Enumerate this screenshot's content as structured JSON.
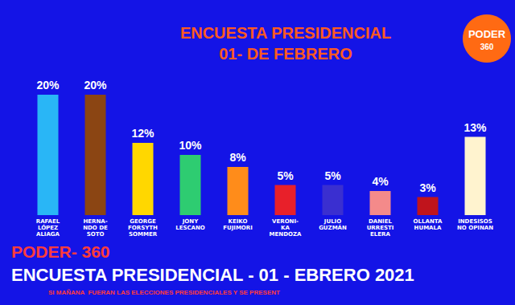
{
  "chart_data": {
    "type": "bar",
    "title": "ENCUESTA PRESIDENCIAL",
    "subtitle": "01- DE FEBRERO",
    "categories": [
      "RAFAEL\nLÓPEZ\nALIAGA",
      "HERNA-\nNDO DE\nSOTO",
      "GEORGE\nFORSYTH\nSOMMER",
      "JONY\nLESCANO",
      "KEIKO\nFUJIMORI",
      "VERONI-\nKA\nMENDOZA",
      "JULIO\nGUZMÁN",
      "DANIEL\nURRESTI\nELERA",
      "OLLANTA\nHUMALA",
      "INDESISOS\nNO OPINAN"
    ],
    "values": [
      20,
      20,
      12,
      10,
      8,
      5,
      5,
      4,
      3,
      13
    ],
    "value_labels": [
      "20%",
      "20%",
      "12%",
      "10%",
      "8%",
      "5%",
      "5%",
      "4%",
      "3%",
      "13%"
    ],
    "colors": [
      "#29b6f6",
      "#8b4513",
      "#ffd700",
      "#2ecc71",
      "#ff8c1a",
      "#e8202a",
      "#3a2fd0",
      "#f48a8a",
      "#c0141c",
      "#fff3cf"
    ],
    "ylim": [
      0,
      20
    ],
    "data_labels": true,
    "tick_labels": "x",
    "grid": false,
    "annotations": [
      "PODER",
      "360",
      "PODER- 360",
      "ENCUESTA PRESIDENCIAL - 01 - EBRERO 2021",
      "SI MAÑANA  FUERAN LAS ELECCIONES PRESIDENCIALES Y SE PRESENT"
    ]
  }
}
